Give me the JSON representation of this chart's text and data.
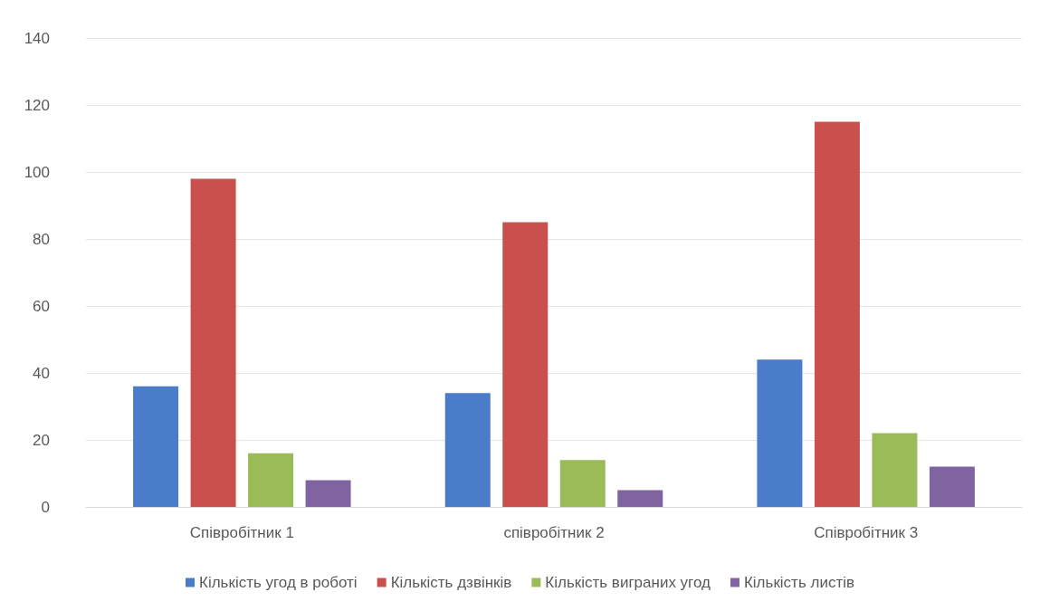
{
  "chart_data": {
    "type": "bar",
    "categories": [
      "Співробітник 1",
      "співробітник 2",
      "Співробітник 3"
    ],
    "series": [
      {
        "name": "Кількість угод в роботі",
        "color": "#4a7cc9",
        "values": [
          36,
          34,
          44
        ]
      },
      {
        "name": "Кількість дзвінків",
        "color": "#c9504d",
        "values": [
          98,
          85,
          115
        ]
      },
      {
        "name": "Кількість виграних угод",
        "color": "#9bbb59",
        "values": [
          16,
          14,
          22
        ]
      },
      {
        "name": "Кількість листів",
        "color": "#8064a2",
        "values": [
          8,
          5,
          12
        ]
      }
    ],
    "ylim": [
      0,
      140
    ],
    "yticks": [
      0,
      20,
      40,
      60,
      80,
      100,
      120,
      140
    ],
    "grid": "y",
    "legend": "bottom"
  }
}
